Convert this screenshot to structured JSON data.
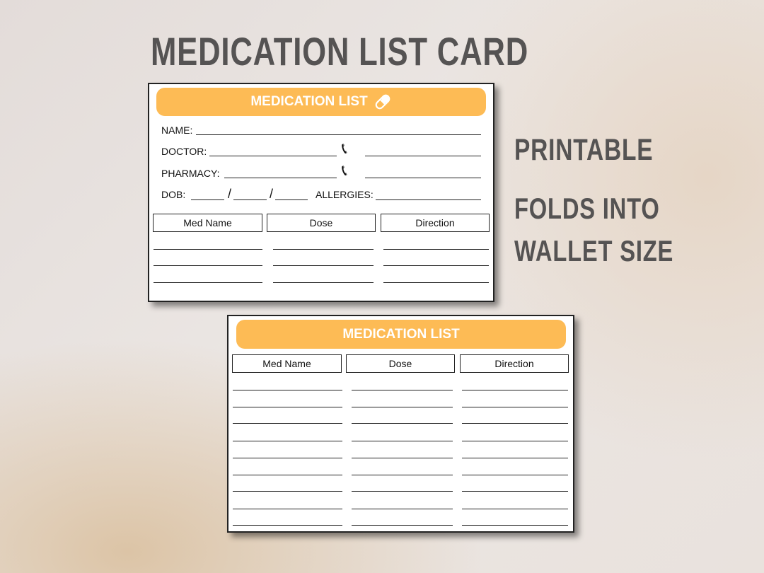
{
  "title": "MEDICATION LIST CARD",
  "features": [
    "PRINTABLE",
    "FOLDS INTO",
    "WALLET SIZE"
  ],
  "colors": {
    "header": "#fdbb55",
    "title_text": "#555353"
  },
  "card_front": {
    "header": "MEDICATION LIST",
    "header_icon": "pill-icon",
    "fields": {
      "name": "NAME:",
      "doctor": "DOCTOR:",
      "pharmacy": "PHARMACY:",
      "dob": "DOB:",
      "dob_sep": "/",
      "allergies": "ALLERGIES:"
    },
    "phone_icon": "phone-icon",
    "columns": [
      "Med Name",
      "Dose",
      "Direction"
    ]
  },
  "card_back": {
    "header": "MEDICATION LIST",
    "columns": [
      "Med Name",
      "Dose",
      "Direction"
    ]
  }
}
